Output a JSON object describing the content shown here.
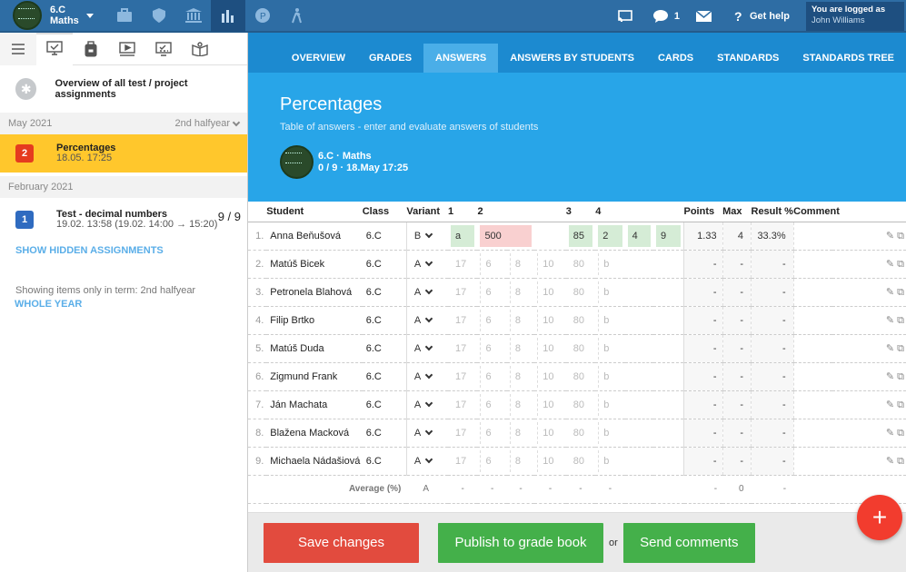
{
  "topbar": {
    "class_name": "6.C",
    "subject": "Maths",
    "messages_count": "1",
    "help_label": "Get help",
    "logged_as_label": "You are logged as",
    "user_name": "John Williams"
  },
  "sidebar": {
    "overview_label": "Overview of all test / project assignments",
    "groups": [
      {
        "month": "May 2021",
        "term": "2nd halfyear"
      },
      {
        "month": "February 2021",
        "term": ""
      }
    ],
    "assignments": [
      {
        "badge": "2",
        "title": "Percentages",
        "date": "18.05. 17:25",
        "score": ""
      },
      {
        "badge": "1",
        "title": "Test - decimal numbers",
        "date": "19.02. 13:58 (19.02. 14:00 → 15:20)",
        "score": "9 / 9"
      }
    ],
    "show_hidden": "SHOW HIDDEN ASSIGNMENTS",
    "term_note": "Showing items only in term: 2nd halfyear",
    "whole_year": "WHOLE YEAR"
  },
  "tabs": [
    "OVERVIEW",
    "GRADES",
    "ANSWERS",
    "ANSWERS BY STUDENTS",
    "CARDS",
    "STANDARDS",
    "STANDARDS TREE"
  ],
  "hero": {
    "title": "Percentages",
    "subtitle": "Table of answers - enter and evaluate answers of students",
    "meta_class": "6.C · Maths",
    "meta_info": "0 / 9 · 18.May 17:25"
  },
  "table": {
    "headers": {
      "student": "Student",
      "class": "Class",
      "variant": "Variant",
      "q1": "1",
      "q2": "2",
      "q3": "3",
      "q4": "4",
      "points": "Points",
      "max": "Max",
      "result": "Result %",
      "comment": "Comment"
    },
    "rows": [
      {
        "n": "1.",
        "name": "Anna Beňušová",
        "cls": "6.C",
        "variant": "B",
        "a1": "a",
        "a2a": "500",
        "a2b": "",
        "a2c": "",
        "a3": "85",
        "a4a": "2",
        "a4b": "4",
        "a4c": "9",
        "points": "1.33",
        "max": "4",
        "result": "33.3%"
      },
      {
        "n": "2.",
        "name": "Matúš Bicek",
        "cls": "6.C",
        "variant": "A",
        "a1": "17",
        "a2a": "6",
        "a2b": "8",
        "a2c": "10",
        "a3": "80",
        "a4a": "b",
        "points": "-",
        "max": "-",
        "result": "-"
      },
      {
        "n": "3.",
        "name": "Petronela Blahová",
        "cls": "6.C",
        "variant": "A",
        "a1": "17",
        "a2a": "6",
        "a2b": "8",
        "a2c": "10",
        "a3": "80",
        "a4a": "b",
        "points": "-",
        "max": "-",
        "result": "-"
      },
      {
        "n": "4.",
        "name": "Filip Brtko",
        "cls": "6.C",
        "variant": "A",
        "a1": "17",
        "a2a": "6",
        "a2b": "8",
        "a2c": "10",
        "a3": "80",
        "a4a": "b",
        "points": "-",
        "max": "-",
        "result": "-"
      },
      {
        "n": "5.",
        "name": "Matúš Duda",
        "cls": "6.C",
        "variant": "A",
        "a1": "17",
        "a2a": "6",
        "a2b": "8",
        "a2c": "10",
        "a3": "80",
        "a4a": "b",
        "points": "-",
        "max": "-",
        "result": "-"
      },
      {
        "n": "6.",
        "name": "Zigmund Frank",
        "cls": "6.C",
        "variant": "A",
        "a1": "17",
        "a2a": "6",
        "a2b": "8",
        "a2c": "10",
        "a3": "80",
        "a4a": "b",
        "points": "-",
        "max": "-",
        "result": "-"
      },
      {
        "n": "7.",
        "name": "Ján Machata",
        "cls": "6.C",
        "variant": "A",
        "a1": "17",
        "a2a": "6",
        "a2b": "8",
        "a2c": "10",
        "a3": "80",
        "a4a": "b",
        "points": "-",
        "max": "-",
        "result": "-"
      },
      {
        "n": "8.",
        "name": "Blažena Macková",
        "cls": "6.C",
        "variant": "A",
        "a1": "17",
        "a2a": "6",
        "a2b": "8",
        "a2c": "10",
        "a3": "80",
        "a4a": "b",
        "points": "-",
        "max": "-",
        "result": "-"
      },
      {
        "n": "9.",
        "name": "Michaela Nádašiová",
        "cls": "6.C",
        "variant": "A",
        "a1": "17",
        "a2a": "6",
        "a2b": "8",
        "a2c": "10",
        "a3": "80",
        "a4a": "b",
        "points": "-",
        "max": "-",
        "result": "-"
      }
    ],
    "average": {
      "label": "Average (%)",
      "variant": "A",
      "cells": [
        "-",
        "-",
        "-",
        "-",
        "-",
        "-"
      ],
      "points": "-",
      "max": "0",
      "result": "-"
    }
  },
  "footer": {
    "save": "Save changes",
    "publish": "Publish to grade book",
    "or": "or",
    "send": "Send comments"
  },
  "fab_label": "+",
  "colors": {
    "topbar": "#2e6da4",
    "tabs": "#1c8ad0",
    "hero": "#28a5e8",
    "selected": "#ffc72c",
    "save": "#e24b3e",
    "publish": "#44b04a"
  }
}
